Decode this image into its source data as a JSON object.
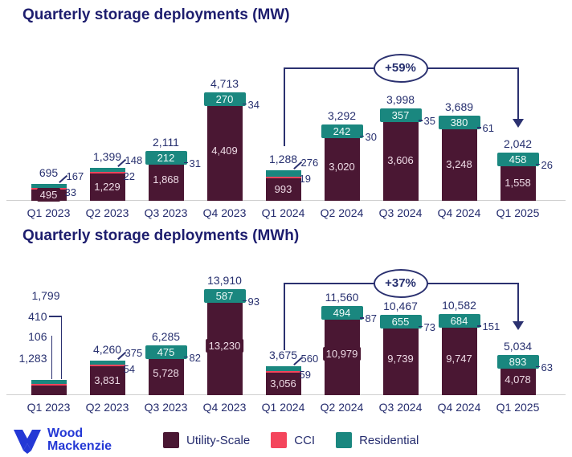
{
  "chart_data": [
    {
      "type": "bar",
      "stacked": true,
      "title": "Quarterly storage deployments (MW)",
      "categories": [
        "Q1 2023",
        "Q2 2023",
        "Q3 2023",
        "Q4 2023",
        "Q1 2024",
        "Q2 2024",
        "Q3 2024",
        "Q4 2024",
        "Q1 2025"
      ],
      "series": [
        {
          "name": "Utility-Scale",
          "color": "#4a1733",
          "values": [
            495,
            1229,
            1868,
            4409,
            993,
            3020,
            3606,
            3248,
            1558
          ]
        },
        {
          "name": "CCI",
          "color": "#f4455c",
          "values": [
            33,
            22,
            31,
            34,
            19,
            30,
            35,
            61,
            26
          ]
        },
        {
          "name": "Residential",
          "color": "#1a877f",
          "values": [
            167,
            148,
            212,
            270,
            276,
            242,
            357,
            380,
            458
          ]
        }
      ],
      "totals": [
        695,
        1399,
        2111,
        4713,
        1288,
        3292,
        3998,
        3689,
        2042
      ],
      "annotation": {
        "label": "+59%",
        "from": "Q1 2024",
        "to": "Q1 2025"
      },
      "label_layout": {
        "res_inside": [
          false,
          false,
          true,
          true,
          false,
          true,
          true,
          true,
          true
        ],
        "left_stack": -1,
        "legend_position": "bottom",
        "grid": false
      }
    },
    {
      "type": "bar",
      "stacked": true,
      "title": "Quarterly storage deployments (MWh)",
      "categories": [
        "Q1 2023",
        "Q2 2023",
        "Q3 2023",
        "Q4 2023",
        "Q1 2024",
        "Q2 2024",
        "Q3 2024",
        "Q4 2024",
        "Q1 2025"
      ],
      "series": [
        {
          "name": "Utility-Scale",
          "color": "#4a1733",
          "values": [
            1283,
            3831,
            5728,
            13230,
            3056,
            10979,
            9739,
            9747,
            4078
          ]
        },
        {
          "name": "CCI",
          "color": "#f4455c",
          "values": [
            106,
            54,
            82,
            93,
            59,
            87,
            73,
            151,
            63
          ]
        },
        {
          "name": "Residential",
          "color": "#1a877f",
          "values": [
            410,
            375,
            475,
            587,
            560,
            494,
            655,
            684,
            893
          ]
        }
      ],
      "totals": [
        1799,
        4260,
        6285,
        13910,
        3675,
        11560,
        10467,
        10582,
        5034
      ],
      "annotation": {
        "label": "+37%",
        "from": "Q1 2024",
        "to": "Q1 2025"
      },
      "label_layout": {
        "res_inside": [
          false,
          false,
          true,
          true,
          false,
          true,
          true,
          true,
          true
        ],
        "left_stack": 0,
        "legend_position": "bottom",
        "grid": false
      }
    }
  ],
  "footer": {
    "logo": {
      "line1": "Wood",
      "line2": "Mackenzie",
      "color": "#2438d5"
    },
    "legend": [
      {
        "label": "Utility-Scale",
        "color": "#4a1733"
      },
      {
        "label": "CCI",
        "color": "#f4455c"
      },
      {
        "label": "Residential",
        "color": "#1a877f"
      }
    ]
  },
  "colors": {
    "title": "#1d1d6e",
    "label": "#27306f",
    "annotation_line": "#2b3170",
    "baseline": "#cfcfcf"
  }
}
